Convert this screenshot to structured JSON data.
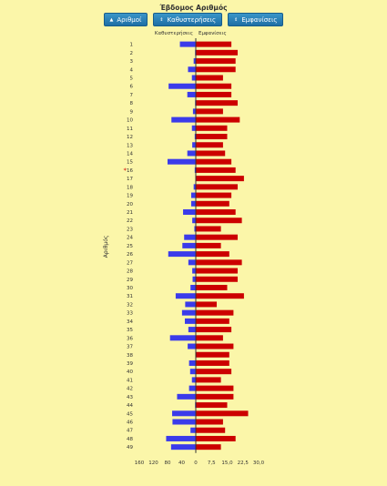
{
  "title": "Έβδομος Αριθμός",
  "buttons": [
    {
      "label": "Αριθμοί",
      "icon": "sort-asc-icon"
    },
    {
      "label": "Καθυστερήσεις",
      "icon": "sort-icon"
    },
    {
      "label": "Εμφανίσεις",
      "icon": "sort-icon"
    }
  ],
  "colors": {
    "delay": "#3b3bea",
    "appear": "#cc0000",
    "axis": "#333333"
  },
  "chart_data": {
    "type": "bar",
    "orientation": "horizontal",
    "ylabel": "Αριθμός",
    "left_header": "Καθυστερήσεις",
    "right_header": "Εμφανίσεις",
    "left_ticks": [
      "160",
      "120",
      "80",
      "40",
      "0"
    ],
    "right_ticks": [
      "7,5",
      "15,0",
      "22,5",
      "30,0"
    ],
    "delay_max": 160,
    "appear_max": 30,
    "highlight_category": "16",
    "categories": [
      "1",
      "2",
      "3",
      "4",
      "5",
      "6",
      "7",
      "8",
      "9",
      "10",
      "11",
      "12",
      "13",
      "14",
      "15",
      "16",
      "17",
      "18",
      "19",
      "20",
      "21",
      "22",
      "23",
      "24",
      "25",
      "26",
      "27",
      "28",
      "29",
      "30",
      "31",
      "32",
      "33",
      "34",
      "35",
      "36",
      "37",
      "38",
      "39",
      "40",
      "41",
      "42",
      "43",
      "44",
      "45",
      "46",
      "47",
      "48",
      "49"
    ],
    "series": [
      {
        "name": "Καθυστερήσεις",
        "values": [
          45,
          2,
          6,
          22,
          11,
          77,
          24,
          2,
          8,
          69,
          11,
          3,
          10,
          24,
          80,
          3,
          1,
          6,
          13,
          13,
          36,
          10,
          4,
          33,
          38,
          78,
          21,
          10,
          9,
          15,
          57,
          30,
          39,
          31,
          21,
          73,
          23,
          1,
          19,
          16,
          11,
          19,
          53,
          2,
          67,
          66,
          15,
          84,
          70
        ]
      },
      {
        "name": "Εμφανίσεις",
        "values": [
          17,
          20,
          19,
          19,
          13,
          17,
          17,
          20,
          13,
          21,
          15,
          15,
          13,
          14,
          17,
          19,
          23,
          20,
          17,
          16,
          19,
          22,
          12,
          20,
          12,
          16,
          22,
          20,
          20,
          15,
          23,
          10,
          18,
          16,
          17,
          13,
          18,
          16,
          16,
          17,
          12,
          18,
          18,
          15,
          25,
          13,
          14,
          19,
          12
        ]
      }
    ]
  }
}
